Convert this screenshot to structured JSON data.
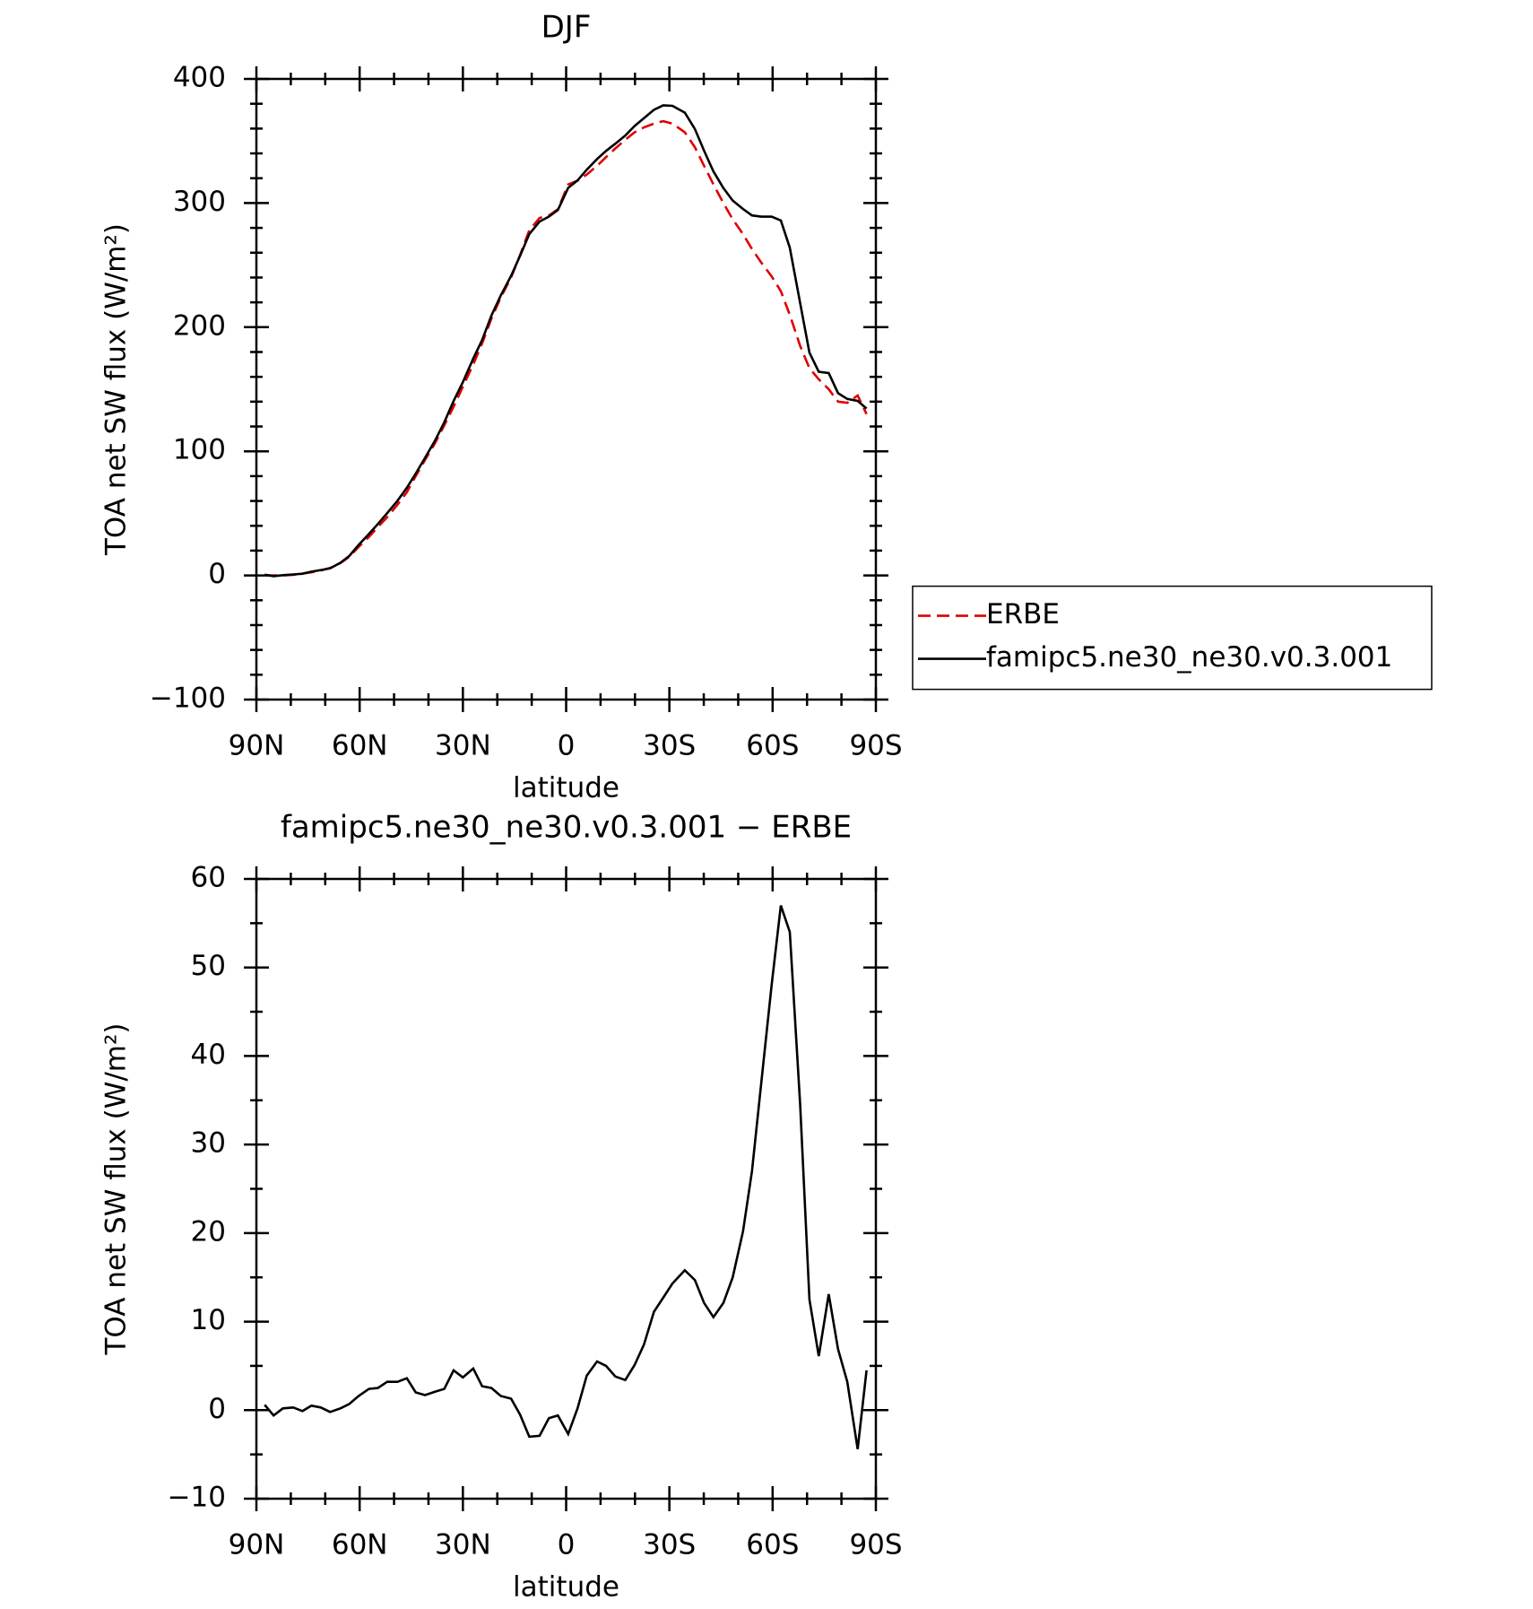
{
  "chart_data": [
    {
      "type": "line",
      "title": "DJF",
      "xlabel": "latitude",
      "ylabel": "TOA net SW flux (W/m²)",
      "x": [
        87.6,
        85,
        82.3,
        79.3,
        76.6,
        74,
        71.3,
        68.6,
        65.6,
        63,
        60.3,
        57.3,
        54.7,
        52,
        49,
        46.3,
        43.7,
        41,
        38,
        35.4,
        32.7,
        30,
        27,
        24.4,
        21.7,
        19,
        16,
        13.4,
        10.7,
        7.7,
        5,
        2.4,
        -0.6,
        -3.3,
        -6,
        -9,
        -11.6,
        -14.3,
        -17.2,
        -19.9,
        -22.6,
        -25.5,
        -28.2,
        -30.9,
        -34.5,
        -37.4,
        -40.1,
        -42.8,
        -45.7,
        -48.4,
        -51.4,
        -54,
        -56.7,
        -59.7,
        -62.4,
        -65,
        -68,
        -70.7,
        -73.4,
        -76.3,
        -79,
        -81.7,
        -84.7,
        -87.3
      ],
      "series": [
        {
          "name": "ERBE",
          "color": "#e00000",
          "style": "dashed",
          "values": [
            0,
            0,
            0,
            0.5,
            1.5,
            2.5,
            4,
            6,
            10,
            15,
            23,
            31,
            39,
            47,
            57,
            67,
            80,
            93,
            107,
            121,
            136,
            152,
            170,
            187,
            207,
            224,
            240,
            258,
            278,
            288,
            290,
            295,
            315,
            318,
            323,
            330,
            337,
            344,
            351,
            357,
            361,
            364,
            366,
            364,
            357,
            345,
            330,
            315,
            300,
            287,
            275,
            263,
            252,
            241,
            229,
            210,
            185,
            167,
            158,
            150,
            140,
            139,
            145,
            130
          ]
        },
        {
          "name": "famipc5.ne30_ne30.v0.3.001",
          "color": "#000000",
          "style": "solid",
          "values": [
            0.6,
            -0.6,
            0.2,
            0.8,
            1.4,
            3,
            4.3,
            5.8,
            10.2,
            15.7,
            24.6,
            33.4,
            41.5,
            50.2,
            60.2,
            70.6,
            82,
            94.7,
            109.1,
            123.4,
            140.5,
            155.7,
            174.7,
            189.7,
            209.5,
            225.6,
            241.3,
            257.5,
            275,
            285.1,
            289.1,
            294.4,
            312.3,
            318.2,
            326.9,
            335.5,
            342,
            347.8,
            354.4,
            362.1,
            368.4,
            375.1,
            378.7,
            378.3,
            372.8,
            359.7,
            342.1,
            325.5,
            312.1,
            302,
            295.2,
            290,
            289,
            289,
            286,
            264,
            219.6,
            179.5,
            164.1,
            163.1,
            146.9,
            142.2,
            140.6,
            134.5
          ]
        }
      ],
      "xlim": [
        90,
        -90
      ],
      "xticks": [
        {
          "value": 90,
          "label": "90N"
        },
        {
          "value": 60,
          "label": "60N"
        },
        {
          "value": 30,
          "label": "30N"
        },
        0,
        {
          "value": -30,
          "label": "30S"
        },
        {
          "value": -60,
          "label": "60S"
        },
        {
          "value": -90,
          "label": "90S"
        }
      ],
      "ylim": [
        -100,
        400
      ],
      "yticks": [
        {
          "value": -100,
          "label": "−100"
        },
        0,
        100,
        200,
        300,
        400
      ],
      "legend": "right"
    },
    {
      "type": "line",
      "title": "famipc5.ne30_ne30.v0.3.001 − ERBE",
      "xlabel": "latitude",
      "ylabel": "TOA net SW flux (W/m²)",
      "x": [
        87.6,
        85,
        82.3,
        79.3,
        76.6,
        74,
        71.3,
        68.6,
        65.6,
        63,
        60.3,
        57.3,
        54.7,
        52,
        49,
        46.3,
        43.7,
        41,
        38,
        35.4,
        32.7,
        30,
        27,
        24.4,
        21.7,
        19,
        16,
        13.4,
        10.7,
        7.7,
        5,
        2.4,
        -0.6,
        -3.3,
        -6,
        -9,
        -11.6,
        -14.3,
        -17.2,
        -19.9,
        -22.6,
        -25.5,
        -28.2,
        -30.9,
        -34.5,
        -37.4,
        -40.1,
        -42.8,
        -45.7,
        -48.4,
        -51.4,
        -54,
        -56.7,
        -59.7,
        -62.4,
        -65,
        -68,
        -70.7,
        -73.4,
        -76.3,
        -79,
        -81.7,
        -84.7,
        -87.3
      ],
      "series": [
        {
          "color": "#000000",
          "style": "solid",
          "values": [
            0.6,
            -0.6,
            0.2,
            0.3,
            -0.1,
            0.5,
            0.3,
            -0.2,
            0.2,
            0.7,
            1.6,
            2.4,
            2.5,
            3.2,
            3.2,
            3.6,
            2,
            1.7,
            2.1,
            2.4,
            4.5,
            3.7,
            4.7,
            2.7,
            2.5,
            1.6,
            1.3,
            -0.5,
            -3,
            -2.9,
            -0.9,
            -0.6,
            -2.7,
            0.2,
            3.9,
            5.5,
            5,
            3.8,
            3.4,
            5.1,
            7.4,
            11.1,
            12.7,
            14.3,
            15.8,
            14.7,
            12.1,
            10.5,
            12.1,
            15,
            20.2,
            27,
            37,
            48,
            57,
            54,
            34.6,
            12.5,
            6.1,
            13.1,
            6.9,
            3.2,
            -4.4,
            4.5
          ]
        }
      ],
      "xlim": [
        90,
        -90
      ],
      "xticks": [
        {
          "value": 90,
          "label": "90N"
        },
        {
          "value": 60,
          "label": "60N"
        },
        {
          "value": 30,
          "label": "30N"
        },
        0,
        {
          "value": -30,
          "label": "30S"
        },
        {
          "value": -60,
          "label": "60S"
        },
        {
          "value": -90,
          "label": "90S"
        }
      ],
      "ylim": [
        -10,
        60
      ],
      "yticks": [
        {
          "value": -10,
          "label": "−10"
        },
        0,
        10,
        20,
        30,
        40,
        50,
        60
      ]
    }
  ]
}
